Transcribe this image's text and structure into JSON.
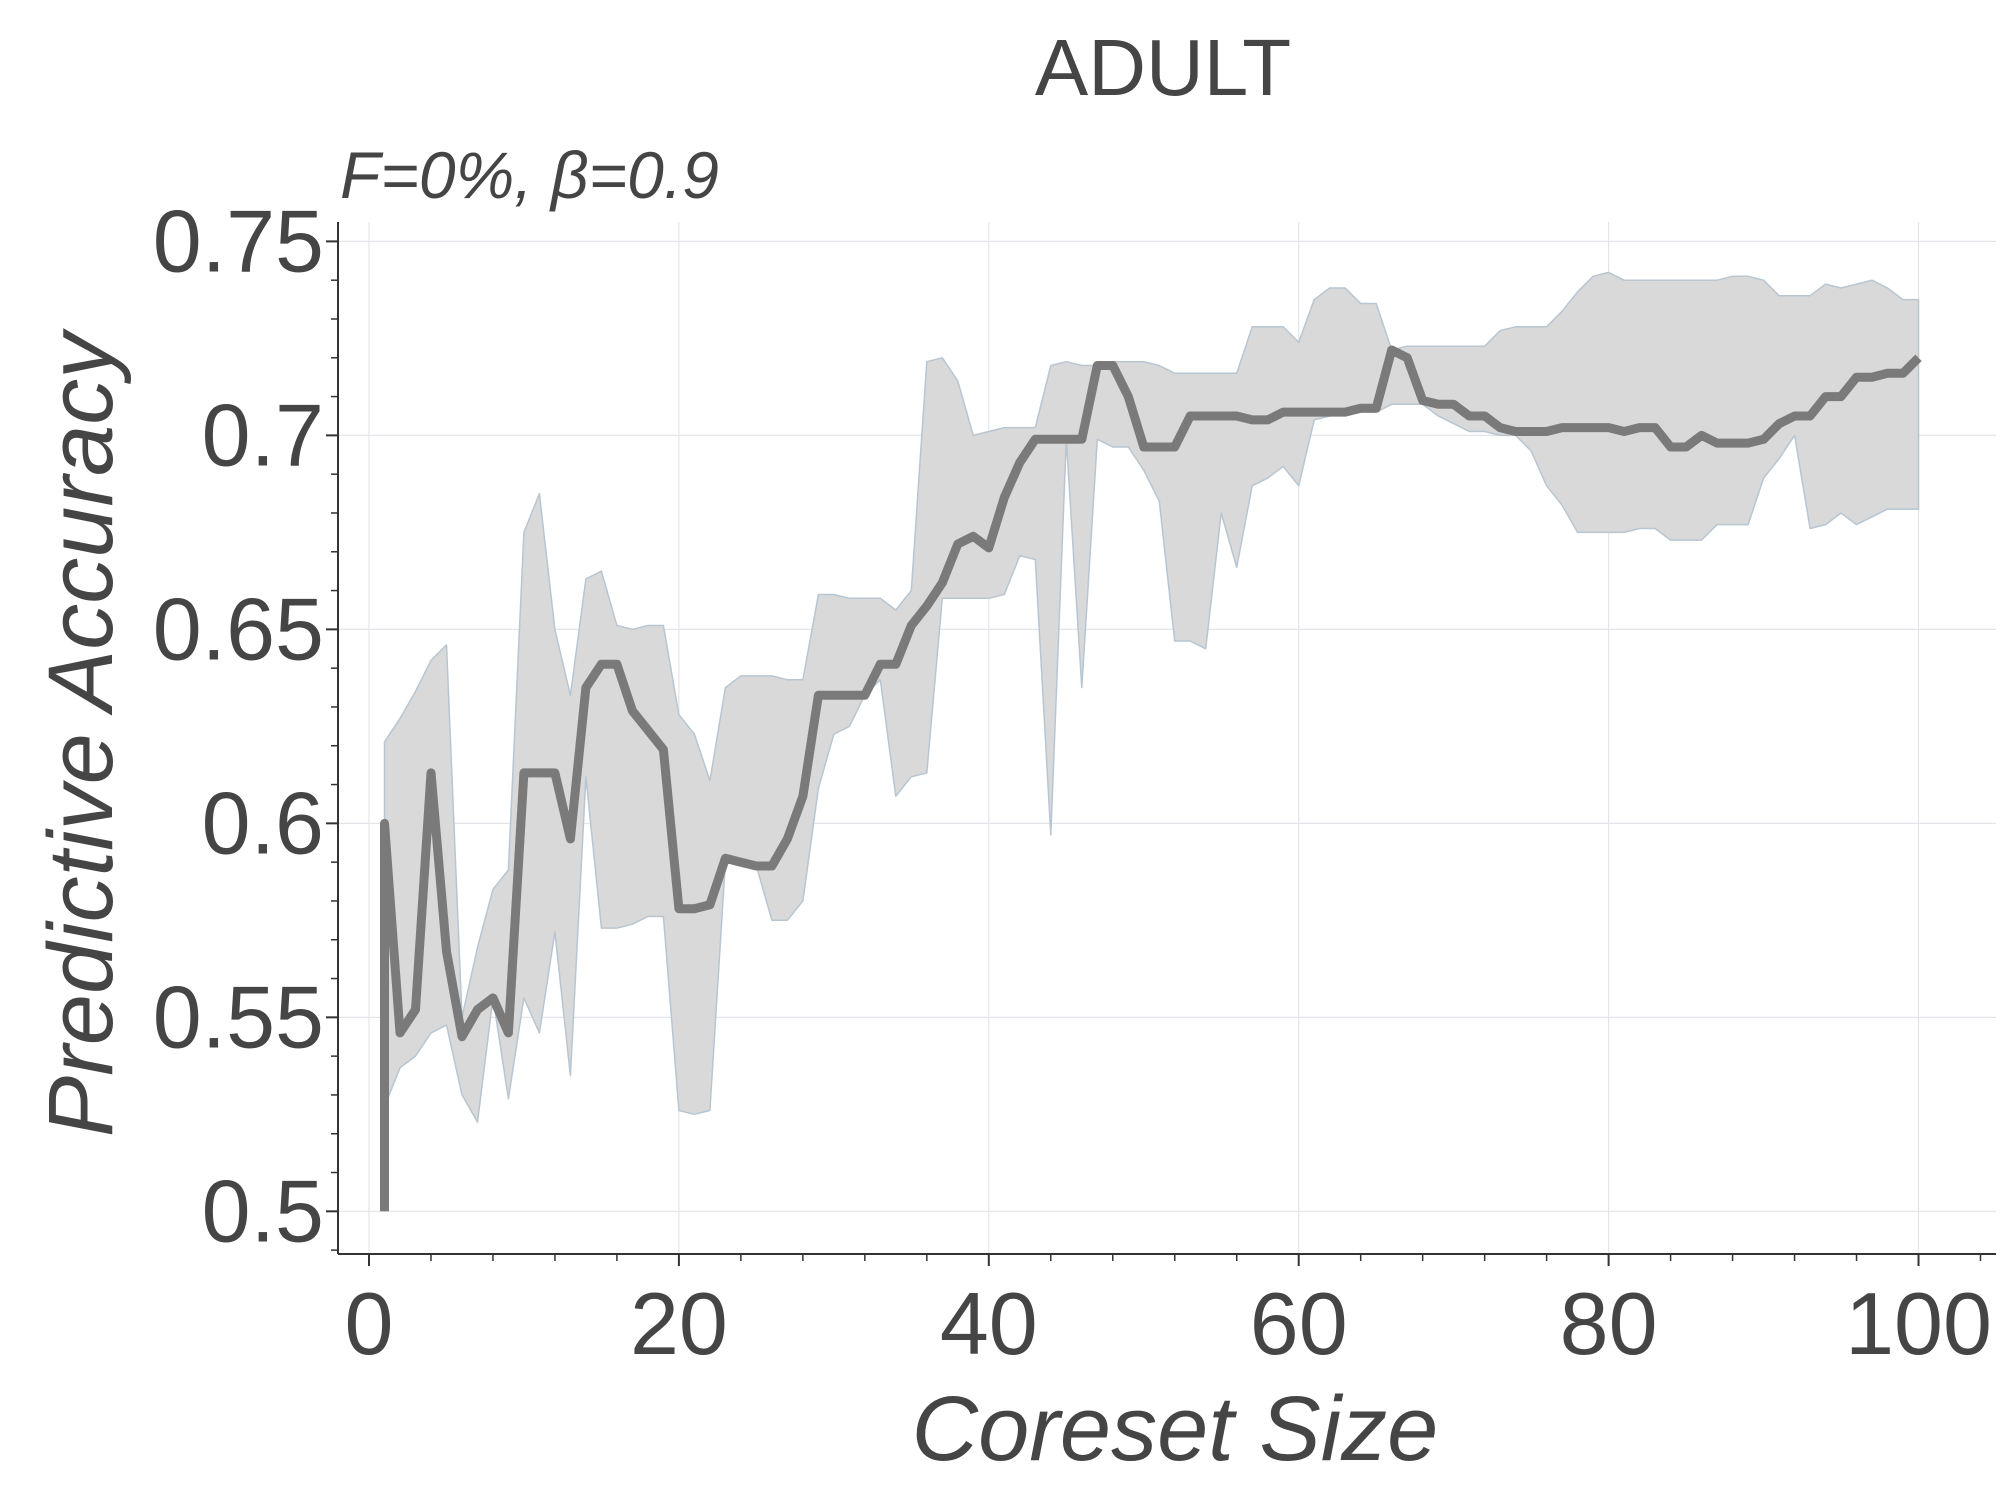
{
  "chart_data": {
    "type": "line",
    "title": "ADULT",
    "subtitle": "F=0%,  β=0.9",
    "xlabel": "Coreset Size",
    "ylabel": "Predictive Accuracy",
    "xlim": [
      -2,
      105
    ],
    "ylim": [
      0.489,
      0.755
    ],
    "xticks": [
      0,
      20,
      40,
      60,
      80,
      100
    ],
    "xtick_labels": [
      "0",
      "20",
      "40",
      "60",
      "80",
      "100"
    ],
    "yticks": [
      0.5,
      0.55,
      0.6,
      0.65,
      0.7,
      0.75
    ],
    "ytick_labels": [
      "0.5",
      "0.55",
      "0.6",
      "0.65",
      "0.7",
      "0.75"
    ],
    "grid": true,
    "colors": {
      "line": "#7a7a7a",
      "band": "#d9d9d9",
      "band_edge": "#b8c6d2",
      "text": "#454545"
    },
    "series": [
      {
        "x": [
          1,
          1,
          2,
          3,
          4,
          5,
          6,
          7,
          8,
          9,
          10,
          11,
          12,
          13,
          14,
          15,
          16,
          17,
          18,
          19,
          20,
          21,
          22,
          23,
          24,
          25,
          26,
          27,
          28,
          29,
          30,
          31,
          32,
          33,
          34,
          35,
          36,
          37,
          38,
          39,
          40,
          41,
          42,
          43,
          44,
          45,
          46,
          47,
          48,
          49,
          50,
          51,
          52,
          53,
          54,
          55,
          56,
          57,
          58,
          59,
          60,
          61,
          62,
          63,
          64,
          65,
          66,
          67,
          68,
          69,
          70,
          71,
          72,
          73,
          74,
          75,
          76,
          77,
          78,
          79,
          80,
          81,
          82,
          83,
          84,
          85,
          86,
          87,
          88,
          89,
          90,
          91,
          92,
          93,
          94,
          95,
          96,
          97,
          98,
          99,
          100
        ],
        "mean": [
          0.5,
          0.6,
          0.546,
          0.552,
          0.613,
          0.567,
          0.545,
          0.552,
          0.555,
          0.546,
          0.613,
          0.613,
          0.613,
          0.596,
          0.635,
          0.641,
          0.641,
          0.629,
          0.624,
          0.619,
          0.578,
          0.578,
          0.579,
          0.591,
          0.59,
          0.589,
          0.589,
          0.596,
          0.607,
          0.633,
          0.633,
          0.633,
          0.633,
          0.641,
          0.641,
          0.651,
          0.656,
          0.662,
          0.672,
          0.674,
          0.671,
          0.684,
          0.693,
          0.699,
          0.699,
          0.699,
          0.699,
          0.718,
          0.718,
          0.71,
          0.697,
          0.697,
          0.697,
          0.705,
          0.705,
          0.705,
          0.705,
          0.704,
          0.704,
          0.706,
          0.706,
          0.706,
          0.706,
          0.706,
          0.707,
          0.707,
          0.722,
          0.72,
          0.709,
          0.708,
          0.708,
          0.705,
          0.705,
          0.702,
          0.701,
          0.701,
          0.701,
          0.702,
          0.702,
          0.702,
          0.702,
          0.701,
          0.702,
          0.702,
          0.697,
          0.697,
          0.7,
          0.698,
          0.698,
          0.698,
          0.699,
          0.703,
          0.705,
          0.705,
          0.71,
          0.71,
          0.715,
          0.715,
          0.716,
          0.716,
          0.72
        ],
        "upper": [
          0.6,
          0.621,
          0.627,
          0.634,
          0.642,
          0.646,
          0.55,
          0.568,
          0.583,
          0.588,
          0.675,
          0.685,
          0.65,
          0.633,
          0.663,
          0.665,
          0.651,
          0.65,
          0.651,
          0.651,
          0.628,
          0.623,
          0.611,
          0.635,
          0.638,
          0.638,
          0.638,
          0.637,
          0.637,
          0.659,
          0.659,
          0.658,
          0.658,
          0.658,
          0.655,
          0.66,
          0.719,
          0.72,
          0.714,
          0.7,
          0.701,
          0.702,
          0.702,
          0.702,
          0.718,
          0.719,
          0.718,
          0.718,
          0.719,
          0.719,
          0.719,
          0.718,
          0.716,
          0.716,
          0.716,
          0.716,
          0.716,
          0.728,
          0.728,
          0.728,
          0.724,
          0.735,
          0.738,
          0.738,
          0.734,
          0.734,
          0.722,
          0.723,
          0.723,
          0.723,
          0.723,
          0.723,
          0.723,
          0.727,
          0.728,
          0.728,
          0.728,
          0.732,
          0.737,
          0.741,
          0.742,
          0.74,
          0.74,
          0.74,
          0.74,
          0.74,
          0.74,
          0.74,
          0.741,
          0.741,
          0.74,
          0.736,
          0.736,
          0.736,
          0.739,
          0.738,
          0.739,
          0.74,
          0.738,
          0.735,
          0.735
        ],
        "lower": [
          0.5,
          0.527,
          0.537,
          0.54,
          0.546,
          0.548,
          0.53,
          0.523,
          0.555,
          0.529,
          0.555,
          0.546,
          0.572,
          0.535,
          0.612,
          0.573,
          0.573,
          0.574,
          0.576,
          0.576,
          0.526,
          0.525,
          0.526,
          0.59,
          0.59,
          0.589,
          0.575,
          0.575,
          0.58,
          0.609,
          0.623,
          0.625,
          0.633,
          0.637,
          0.607,
          0.612,
          0.613,
          0.658,
          0.658,
          0.658,
          0.658,
          0.659,
          0.669,
          0.668,
          0.597,
          0.699,
          0.635,
          0.699,
          0.697,
          0.697,
          0.691,
          0.683,
          0.647,
          0.647,
          0.645,
          0.68,
          0.666,
          0.687,
          0.689,
          0.692,
          0.687,
          0.704,
          0.705,
          0.706,
          0.706,
          0.706,
          0.708,
          0.708,
          0.708,
          0.705,
          0.703,
          0.701,
          0.701,
          0.7,
          0.7,
          0.696,
          0.687,
          0.682,
          0.675,
          0.675,
          0.675,
          0.675,
          0.676,
          0.676,
          0.673,
          0.673,
          0.673,
          0.677,
          0.677,
          0.677,
          0.689,
          0.694,
          0.7,
          0.676,
          0.677,
          0.68,
          0.677,
          0.679,
          0.681,
          0.681,
          0.681
        ]
      }
    ]
  }
}
